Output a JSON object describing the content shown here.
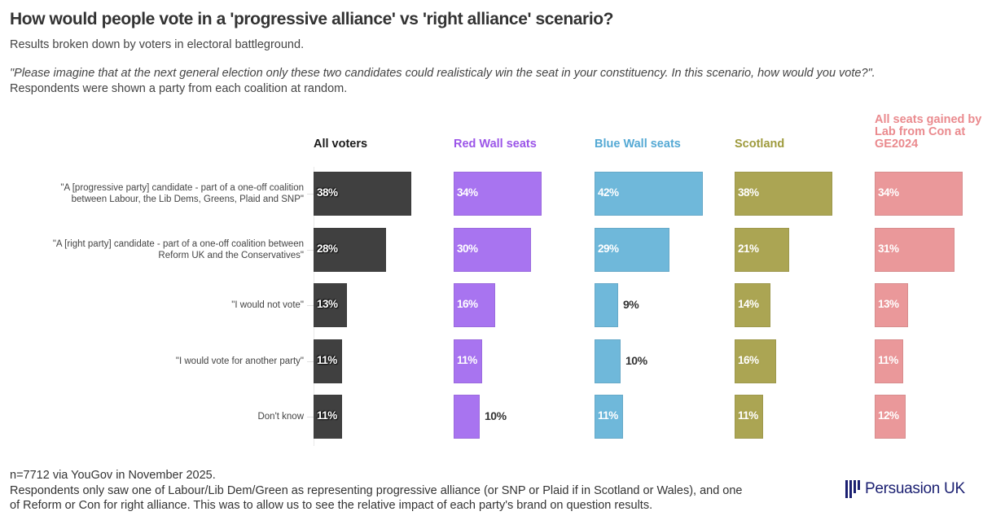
{
  "header": {
    "title": "How would people vote in a 'progressive alliance' vs 'right alliance' scenario?",
    "subtitle": "Results broken down by voters in electoral battleground.",
    "question": "\"Please imagine that at the next general election only these two candidates could realisticaly win the seat in your constituency. In this scenario, how would you vote?\".",
    "note": "Respondents were shown a party from each coalition at random."
  },
  "footer": {
    "sample": "n=7712 via YouGov in November 2025.",
    "line2": "Respondents only saw one of Labour/Lib Dem/Green as representing progressive alliance (or SNP or Plaid if in Scotland or Wales), and one",
    "line3": "of Reform or Con for right alliance. This was to allow us to see the relative impact of each party's brand on question results."
  },
  "brand": {
    "name": "Persuasion UK",
    "color": "#1a1f71",
    "icon": "bars-logo-icon"
  },
  "chart_data": {
    "type": "bar",
    "orientation": "horizontal",
    "layout": "small-multiples",
    "title": "How would people vote in a 'progressive alliance' vs 'right alliance' scenario?",
    "categories": [
      "\"A [progressive party] candidate - part of a one-off coalition between Labour, the Lib Dems, Greens, Plaid and SNP\"",
      "\"A [right party] candidate - part of a one-off coalition between Reform UK and the Conservatives\"",
      "\"I would not vote\"",
      "\"I would vote for another party\"",
      "Don't know"
    ],
    "category_lines": [
      [
        "\"A [progressive party] candidate - part of a one-off coalition",
        "between Labour, the Lib Dems, Greens, Plaid and SNP\""
      ],
      [
        "\"A [right party] candidate - part of a one-off coalition between",
        "Reform UK and the Conservatives\""
      ],
      [
        "\"I would not vote\""
      ],
      [
        "\"I would vote for another party\""
      ],
      [
        "Don't know"
      ]
    ],
    "series": [
      {
        "name": "All voters",
        "color": "#404040",
        "header_color": "#1a1a1a",
        "values": [
          38,
          28,
          13,
          11,
          11
        ]
      },
      {
        "name": "Red Wall seats",
        "color": "#a874f0",
        "header_color": "#9b55e8",
        "values": [
          34,
          30,
          16,
          11,
          10
        ]
      },
      {
        "name": "Blue Wall seats",
        "color": "#6fb8da",
        "header_color": "#55a9d4",
        "values": [
          42,
          29,
          9,
          10,
          11
        ]
      },
      {
        "name": "Scotland",
        "color": "#aba553",
        "header_color": "#9e9a3c",
        "values": [
          38,
          21,
          14,
          16,
          11
        ]
      },
      {
        "name": "All seats gained by Lab from Con at GE2024",
        "header_lines": [
          "All seats gained by",
          "Lab from Con at",
          "GE2024"
        ],
        "color": "#ea989a",
        "header_color": "#ea8a8e",
        "values": [
          34,
          31,
          13,
          11,
          12
        ]
      }
    ],
    "value_suffix": "%",
    "xlim": [
      0,
      42
    ],
    "grid": false,
    "legend": "none",
    "xlabel": "",
    "ylabel": ""
  }
}
